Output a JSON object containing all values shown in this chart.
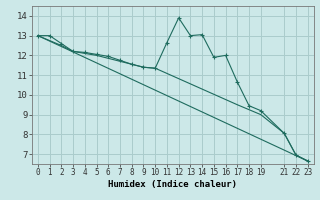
{
  "title": "",
  "xlabel": "Humidex (Indice chaleur)",
  "bg_color": "#cce8e8",
  "grid_color": "#aacccc",
  "line_color": "#1e6b5e",
  "xlim": [
    -0.5,
    23.5
  ],
  "ylim": [
    6.5,
    14.5
  ],
  "xticks": [
    0,
    1,
    2,
    3,
    4,
    5,
    6,
    7,
    8,
    9,
    10,
    11,
    12,
    13,
    14,
    15,
    16,
    17,
    18,
    19,
    21,
    22,
    23
  ],
  "yticks": [
    7,
    8,
    9,
    10,
    11,
    12,
    13,
    14
  ],
  "series0_x": [
    0,
    1,
    2,
    3,
    4,
    5,
    6,
    7,
    8,
    9,
    10,
    11,
    12,
    13,
    14,
    15,
    16,
    17,
    18,
    19,
    21,
    22,
    23
  ],
  "series0_y": [
    13.0,
    13.0,
    12.6,
    12.2,
    12.15,
    12.05,
    11.95,
    11.75,
    11.55,
    11.4,
    11.35,
    12.65,
    13.9,
    13.0,
    13.05,
    11.9,
    12.0,
    10.65,
    9.45,
    9.2,
    8.05,
    6.95,
    6.65
  ],
  "series1_x": [
    0,
    1,
    2,
    3,
    4,
    5,
    6,
    7,
    8,
    9,
    10,
    17,
    18,
    19,
    21,
    22,
    23
  ],
  "series1_y": [
    13.0,
    12.75,
    12.5,
    12.2,
    12.1,
    12.0,
    11.85,
    11.7,
    11.55,
    11.4,
    11.35,
    9.5,
    9.25,
    9.0,
    8.05,
    6.95,
    6.65
  ],
  "series2_x": [
    0,
    23
  ],
  "series2_y": [
    13.0,
    6.65
  ]
}
